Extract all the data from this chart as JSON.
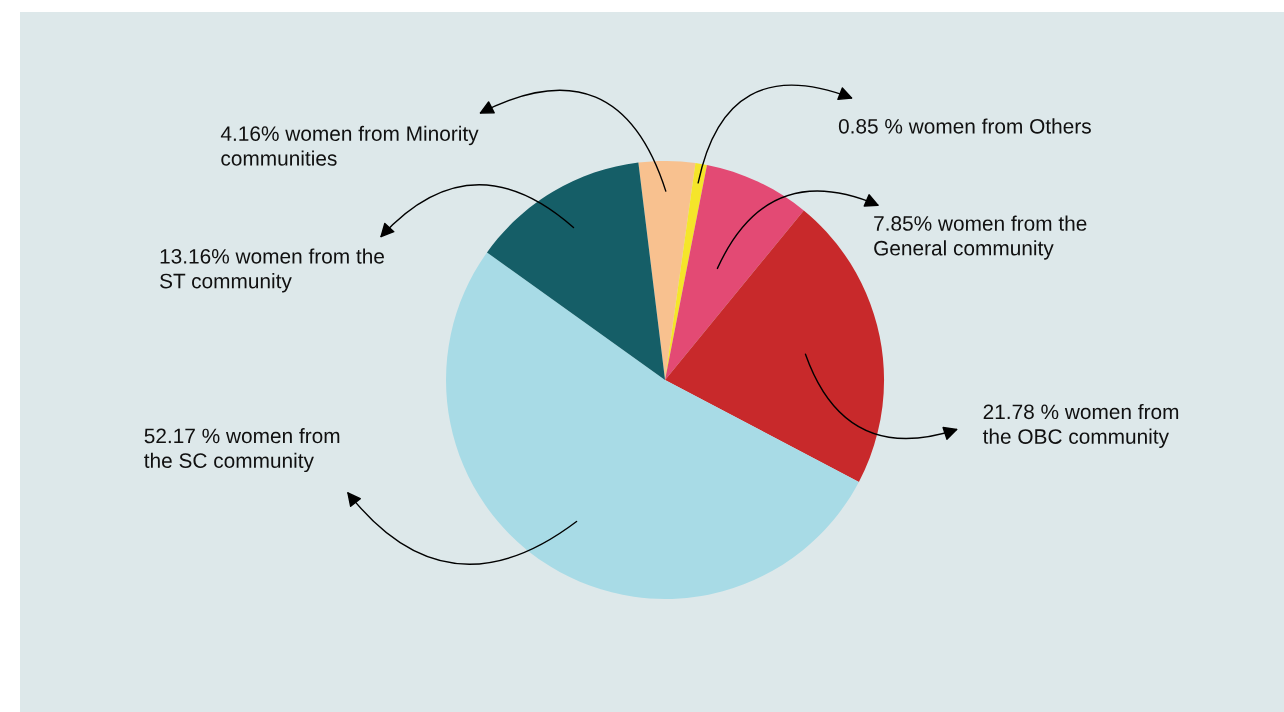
{
  "chart_data": {
    "type": "pie",
    "categories": [
      "4.16% women from Minority\ncommunities",
      "0.85 % women from Others",
      "7.85% women from the\nGeneral community",
      "21.78 % women from\nthe OBC community",
      "52.17 % women from\nthe SC community",
      "13.16% women from the\nST community"
    ],
    "values": [
      4.16,
      0.85,
      7.85,
      21.78,
      52.17,
      13.16
    ],
    "colors": [
      "#f8c18f",
      "#f5e52a",
      "#e34a74",
      "#c8292b",
      "#a8dbe6",
      "#155e67"
    ]
  }
}
